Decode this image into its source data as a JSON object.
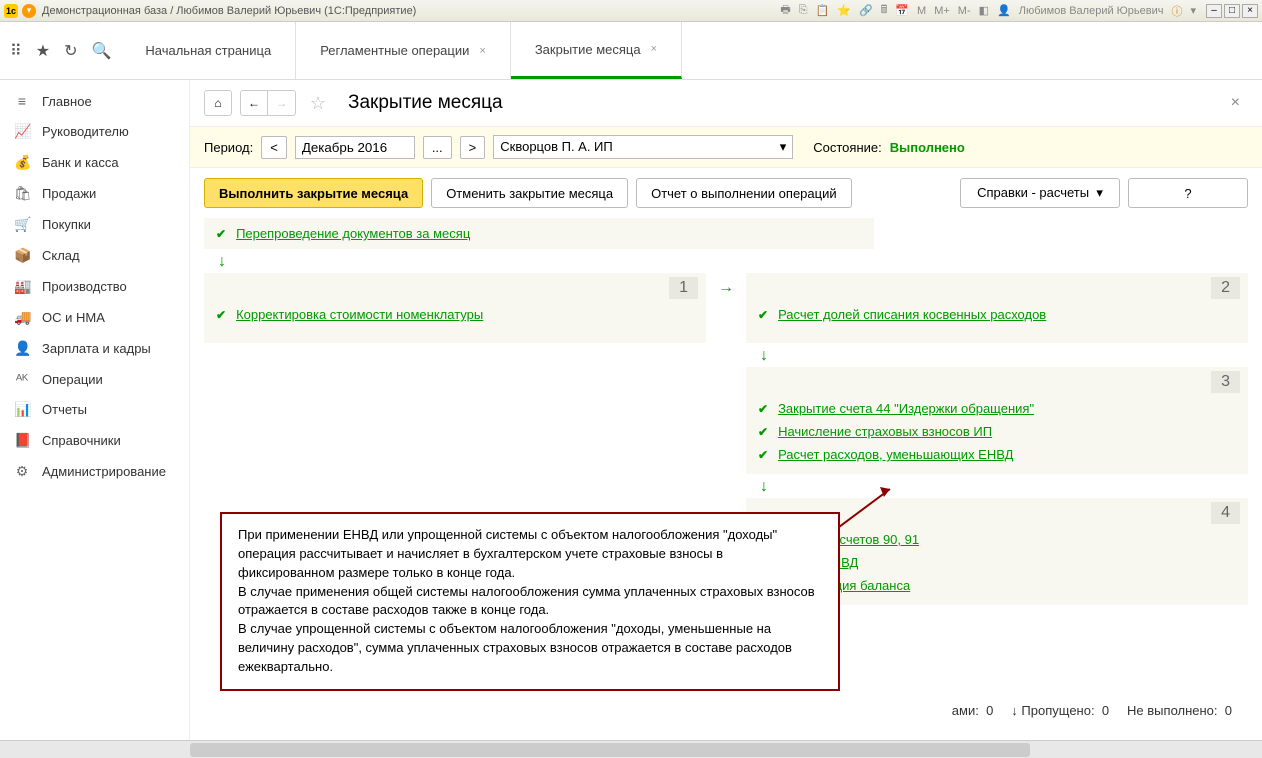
{
  "titlebar": {
    "title": "Демонстрационная база / Любимов Валерий Юрьевич  (1С:Предприятие)",
    "user": "Любимов Валерий Юрьевич",
    "mlabels": [
      "M",
      "M+",
      "M-"
    ]
  },
  "tabs": [
    {
      "label": "Начальная страница",
      "closable": false,
      "active": false
    },
    {
      "label": "Регламентные операции",
      "closable": true,
      "active": false
    },
    {
      "label": "Закрытие месяца",
      "closable": true,
      "active": true
    }
  ],
  "sidebar": [
    {
      "icon": "≡",
      "label": "Главное"
    },
    {
      "icon": "📈",
      "label": "Руководителю"
    },
    {
      "icon": "💰",
      "label": "Банк и касса"
    },
    {
      "icon": "🛍",
      "label": "Продажи"
    },
    {
      "icon": "🛒",
      "label": "Покупки"
    },
    {
      "icon": "📦",
      "label": "Склад"
    },
    {
      "icon": "🏭",
      "label": "Производство"
    },
    {
      "icon": "🚚",
      "label": "ОС и НМА"
    },
    {
      "icon": "👤",
      "label": "Зарплата и кадры"
    },
    {
      "icon": "ᴬᴷ",
      "label": "Операции"
    },
    {
      "icon": "📊",
      "label": "Отчеты"
    },
    {
      "icon": "📕",
      "label": "Справочники"
    },
    {
      "icon": "⚙",
      "label": "Администрирование"
    }
  ],
  "page": {
    "title": "Закрытие месяца",
    "period_label": "Период:",
    "period_value": "Декабрь 2016",
    "org_value": "Скворцов П. А. ИП",
    "state_label": "Состояние:",
    "state_value": "Выполнено"
  },
  "actions": {
    "run": "Выполнить закрытие месяца",
    "cancel": "Отменить закрытие месяца",
    "report": "Отчет о выполнении операций",
    "refs": "Справки - расчеты",
    "help": "?"
  },
  "ops": {
    "reprov": "Перепроведение документов за месяц",
    "stage1": {
      "num": "1",
      "items": [
        "Корректировка стоимости номенклатуры"
      ]
    },
    "stage2": {
      "num": "2",
      "items": [
        "Расчет долей списания косвенных расходов"
      ]
    },
    "stage3": {
      "num": "3",
      "items": [
        "Закрытие счета 44 \"Издержки обращения\"",
        "Начисление страховых взносов ИП",
        "Расчет расходов, уменьшающих ЕНВД"
      ]
    },
    "stage4": {
      "num": "4",
      "items": [
        "Закрытие счетов 90, 91",
        "Расчет ЕНВД",
        "Реформация баланса"
      ]
    }
  },
  "callout": "При применении ЕНВД или упрощенной системы с объектом налогообложения \"доходы\" операция рассчитывает и начисляет в бухгалтерском учете страховые взносы в фиксированном размере только в конце года.\nВ случае применения общей системы налогообложения сумма уплаченных страховых взносов отражается в составе расходов также в конце года.\nВ случае упрощенной системы с объектом налогообложения \"доходы, уменьшенные на величину расходов\", сумма уплаченных страховых взносов отражается в составе расходов ежеквартально.",
  "footer": {
    "errors_l": "ами:",
    "errors_v": "0",
    "skipped_l": "Пропущено:",
    "skipped_v": "0",
    "notdone_l": "Не выполнено:",
    "notdone_v": "0"
  }
}
